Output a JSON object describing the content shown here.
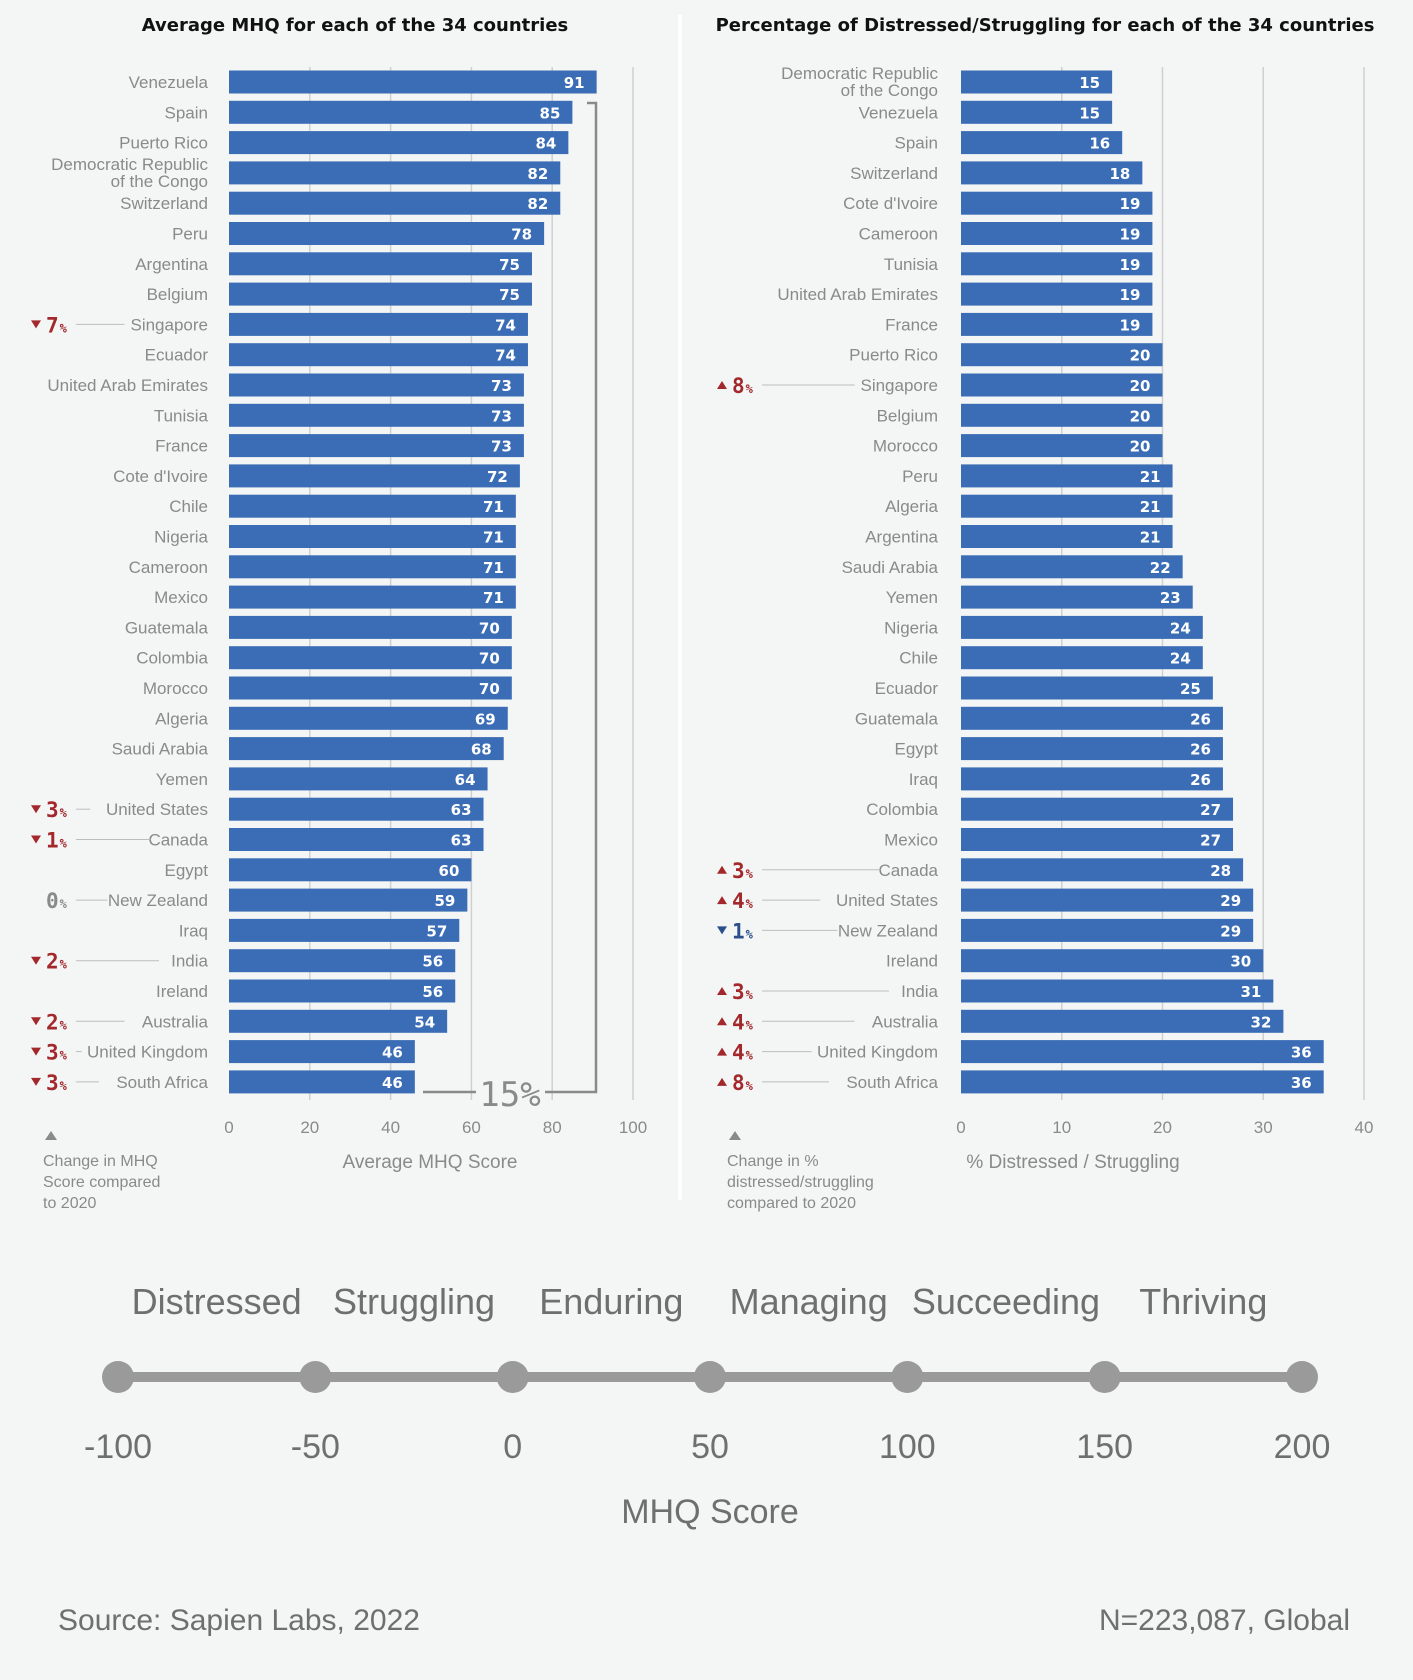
{
  "chart_data": [
    {
      "type": "bar",
      "orientation": "horizontal",
      "title": "Average MHQ for each of the 34 countries",
      "xlabel": "Average MHQ Score",
      "xlim": [
        0,
        100
      ],
      "xticks": [
        0,
        20,
        40,
        60,
        80,
        100
      ],
      "categories": [
        "Venezuela",
        "Spain",
        "Puerto Rico",
        "Democratic Republic\nof the Congo",
        "Switzerland",
        "Peru",
        "Argentina",
        "Belgium",
        "Singapore",
        "Ecuador",
        "United Arab Emirates",
        "Tunisia",
        "France",
        "Cote d'Ivoire",
        "Chile",
        "Nigeria",
        "Cameroon",
        "Mexico",
        "Guatemala",
        "Colombia",
        "Morocco",
        "Algeria",
        "Saudi Arabia",
        "Yemen",
        "United States",
        "Canada",
        "Egypt",
        "New Zealand",
        "Iraq",
        "India",
        "Ireland",
        "Australia",
        "United Kingdom",
        "South Africa"
      ],
      "values": [
        91,
        85,
        84,
        82,
        82,
        78,
        75,
        75,
        74,
        74,
        73,
        73,
        73,
        72,
        71,
        71,
        71,
        71,
        70,
        70,
        70,
        69,
        68,
        64,
        63,
        63,
        60,
        59,
        57,
        56,
        56,
        54,
        46,
        46
      ],
      "changes": [
        {
          "country": "Singapore",
          "value": "7",
          "direction": "down"
        },
        {
          "country": "United States",
          "value": "3",
          "direction": "down"
        },
        {
          "country": "Canada",
          "value": "1",
          "direction": "down"
        },
        {
          "country": "New Zealand",
          "value": "0",
          "direction": "none"
        },
        {
          "country": "India",
          "value": "2",
          "direction": "down"
        },
        {
          "country": "Australia",
          "value": "2",
          "direction": "down"
        },
        {
          "country": "United Kingdom",
          "value": "3",
          "direction": "down"
        },
        {
          "country": "South Africa",
          "value": "3",
          "direction": "down"
        }
      ],
      "change_note": "Change in MHQ\nScore compared\nto 2020",
      "range_annotation": "15%",
      "bar_color": "#3a6db5"
    },
    {
      "type": "bar",
      "orientation": "horizontal",
      "title": "Percentage of Distressed/Struggling for each of the 34 countries",
      "xlabel": "% Distressed / Struggling",
      "xlim": [
        0,
        40
      ],
      "xticks": [
        0,
        10,
        20,
        30,
        40
      ],
      "categories": [
        "Democratic Republic\nof the Congo",
        "Venezuela",
        "Spain",
        "Switzerland",
        "Cote d'Ivoire",
        "Cameroon",
        "Tunisia",
        "United Arab Emirates",
        "France",
        "Puerto Rico",
        "Singapore",
        "Belgium",
        "Morocco",
        "Peru",
        "Algeria",
        "Argentina",
        "Saudi Arabia",
        "Yemen",
        "Nigeria",
        "Chile",
        "Ecuador",
        "Guatemala",
        "Egypt",
        "Iraq",
        "Colombia",
        "Mexico",
        "Canada",
        "United States",
        "New Zealand",
        "Ireland",
        "India",
        "Australia",
        "United Kingdom",
        "South Africa"
      ],
      "values": [
        15,
        15,
        16,
        18,
        19,
        19,
        19,
        19,
        19,
        20,
        20,
        20,
        20,
        21,
        21,
        21,
        22,
        23,
        24,
        24,
        25,
        26,
        26,
        26,
        27,
        27,
        28,
        29,
        29,
        30,
        31,
        32,
        36,
        36
      ],
      "changes": [
        {
          "country": "Singapore",
          "value": "8",
          "direction": "up"
        },
        {
          "country": "Canada",
          "value": "3",
          "direction": "up"
        },
        {
          "country": "United States",
          "value": "4",
          "direction": "up"
        },
        {
          "country": "New Zealand",
          "value": "1",
          "direction": "down-good"
        },
        {
          "country": "India",
          "value": "3",
          "direction": "up"
        },
        {
          "country": "Australia",
          "value": "4",
          "direction": "up"
        },
        {
          "country": "United Kingdom",
          "value": "4",
          "direction": "up"
        },
        {
          "country": "South Africa",
          "value": "8",
          "direction": "up"
        }
      ],
      "change_note": "Change in %\ndistressed/struggling\ncompared to 2020",
      "bar_color": "#3a6db5"
    }
  ],
  "change_unit": "%",
  "colors": {
    "worse": "#a3282c",
    "better": "#2a4f8c",
    "neutral": "#8a8a8a"
  },
  "scale": {
    "categories": [
      "Distressed",
      "Struggling",
      "Enduring",
      "Managing",
      "Succeeding",
      "Thriving"
    ],
    "ticks": [
      -100,
      -50,
      0,
      50,
      100,
      150,
      200
    ],
    "title": "MHQ Score"
  },
  "footer": {
    "source": "Source: Sapien Labs, 2022",
    "sample": "N=223,087, Global"
  }
}
